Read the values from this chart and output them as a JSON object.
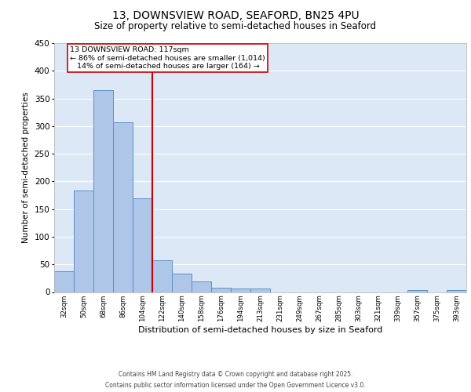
{
  "title_line1": "13, DOWNSVIEW ROAD, SEAFORD, BN25 4PU",
  "title_line2": "Size of property relative to semi-detached houses in Seaford",
  "xlabel": "Distribution of semi-detached houses by size in Seaford",
  "ylabel": "Number of semi-detached properties",
  "categories": [
    "32sqm",
    "50sqm",
    "68sqm",
    "86sqm",
    "104sqm",
    "122sqm",
    "140sqm",
    "158sqm",
    "176sqm",
    "194sqm",
    "213sqm",
    "231sqm",
    "249sqm",
    "267sqm",
    "285sqm",
    "303sqm",
    "321sqm",
    "339sqm",
    "357sqm",
    "375sqm",
    "393sqm"
  ],
  "values": [
    38,
    183,
    365,
    307,
    170,
    58,
    33,
    19,
    8,
    6,
    6,
    0,
    0,
    0,
    0,
    0,
    0,
    0,
    3,
    0,
    3
  ],
  "bar_color": "#aec6e8",
  "bar_edge_color": "#5b8fc9",
  "property_line_color": "#cc0000",
  "annotation_line1": "13 DOWNSVIEW ROAD: 117sqm",
  "annotation_line2": "← 86% of semi-detached houses are smaller (1,014)",
  "annotation_line3": "   14% of semi-detached houses are larger (164) →",
  "annotation_box_color": "#cc0000",
  "ylim": [
    0,
    450
  ],
  "yticks": [
    0,
    50,
    100,
    150,
    200,
    250,
    300,
    350,
    400,
    450
  ],
  "background_color": "#dce8f5",
  "grid_color": "#ffffff",
  "footer_line1": "Contains HM Land Registry data © Crown copyright and database right 2025.",
  "footer_line2": "Contains public sector information licensed under the Open Government Licence v3.0."
}
